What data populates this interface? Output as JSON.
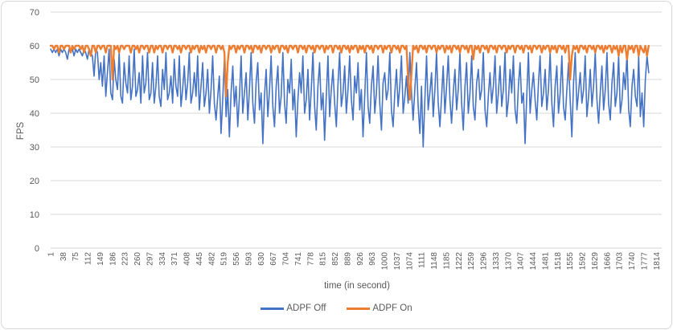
{
  "chart": {
    "background": "#ffffff",
    "border_color": "#D7D7D7",
    "gridline_color": "#D9D9D9",
    "axis_line_color": "#D0D0D0",
    "tick_label_color": "#595959"
  },
  "chart_data": {
    "type": "line",
    "title": "",
    "xlabel": "time (in second)",
    "ylabel": "FPS",
    "ylim": [
      0,
      70
    ],
    "yticks": [
      0,
      10,
      20,
      30,
      40,
      50,
      60,
      70
    ],
    "xticks": [
      1,
      38,
      75,
      112,
      149,
      186,
      223,
      260,
      297,
      334,
      371,
      408,
      445,
      482,
      519,
      556,
      593,
      630,
      667,
      704,
      741,
      778,
      815,
      852,
      889,
      926,
      963,
      1000,
      1037,
      1074,
      1111,
      1148,
      1185,
      1222,
      1259,
      1296,
      1333,
      1370,
      1407,
      1444,
      1481,
      1518,
      1555,
      1592,
      1629,
      1666,
      1703,
      1740,
      1777,
      1814
    ],
    "x_axis": {
      "min": 1,
      "max": 1830
    },
    "grid": true,
    "legend_position": "bottom",
    "x_rule": {
      "start": 1,
      "step": 5,
      "count": 359
    },
    "series": [
      {
        "name": "ADPF Off",
        "color": "#4472C4",
        "stroke_width": 1.6,
        "values": [
          59,
          58,
          59,
          58,
          59,
          57,
          59,
          58,
          59,
          58,
          56,
          59,
          58,
          59,
          57,
          59,
          58,
          59,
          58,
          57,
          59,
          58,
          56,
          59,
          58,
          57,
          51,
          59,
          58,
          50,
          55,
          48,
          57,
          45,
          52,
          59,
          46,
          44,
          56,
          50,
          47,
          58,
          45,
          43,
          55,
          49,
          46,
          57,
          44,
          48,
          59,
          45,
          47,
          52,
          43,
          57,
          46,
          49,
          58,
          44,
          46,
          55,
          43,
          48,
          57,
          45,
          42,
          53,
          47,
          58,
          44,
          46,
          51,
          43,
          56,
          48,
          45,
          57,
          42,
          47,
          54,
          44,
          49,
          58,
          43,
          46,
          52,
          45,
          57,
          41,
          48,
          55,
          42,
          46,
          53,
          40,
          47,
          57,
          43,
          38,
          45,
          51,
          34,
          44,
          56,
          39,
          47,
          33,
          46,
          54,
          42,
          48,
          36,
          45,
          57,
          40,
          46,
          52,
          38,
          47,
          58,
          43,
          37,
          49,
          55,
          41,
          46,
          31,
          45,
          53,
          39,
          47,
          57,
          42,
          36,
          48,
          54,
          40,
          45,
          58,
          43,
          37,
          50,
          46,
          56,
          41,
          47,
          33,
          44,
          52,
          46,
          57,
          40,
          44,
          53,
          38,
          47,
          58,
          42,
          35,
          48,
          55,
          41,
          46,
          32,
          45,
          57,
          39,
          47,
          53,
          43,
          36,
          49,
          58,
          42,
          46,
          54,
          40,
          47,
          57,
          44,
          38,
          51,
          46,
          55,
          41,
          47,
          33,
          45,
          58,
          42,
          37,
          48,
          54,
          40,
          46,
          57,
          43,
          35,
          49,
          52,
          44,
          47,
          58,
          41,
          36,
          46,
          53,
          42,
          48,
          57,
          40,
          45,
          51,
          43,
          58,
          46,
          38,
          47,
          55,
          42,
          34,
          48,
          30,
          44,
          57,
          41,
          46,
          52,
          39,
          47,
          58,
          43,
          36,
          45,
          54,
          40,
          48,
          57,
          44,
          37,
          46,
          53,
          41,
          47,
          58,
          43,
          35,
          48,
          55,
          40,
          46,
          57,
          42,
          38,
          49,
          53,
          44,
          47,
          58,
          41,
          36,
          45,
          52,
          43,
          48,
          57,
          40,
          46,
          54,
          42,
          47,
          58,
          39,
          44,
          53,
          46,
          57,
          41,
          37,
          48,
          55,
          43,
          46,
          31,
          45,
          58,
          40,
          47,
          52,
          44,
          38,
          49,
          57,
          42,
          46,
          53,
          41,
          47,
          58,
          43,
          36,
          48,
          54,
          40,
          46,
          57,
          42,
          38,
          47,
          55,
          44,
          33,
          49,
          58,
          41,
          46,
          52,
          43,
          47,
          57,
          39,
          45,
          53,
          42,
          48,
          58,
          44,
          37,
          46,
          54,
          41,
          47,
          58,
          43,
          38,
          49,
          55,
          42,
          46,
          57,
          40,
          44,
          52,
          47,
          58,
          41,
          36,
          48,
          53,
          45,
          42,
          57,
          39,
          46,
          36,
          50,
          57,
          52
        ]
      },
      {
        "name": "ADPF On",
        "color": "#ED7D31",
        "stroke_width": 2.4,
        "values": [
          60,
          60,
          59,
          60,
          60,
          58,
          60,
          60,
          59,
          60,
          60,
          60,
          58,
          60,
          59,
          60,
          60,
          60,
          59,
          60,
          58,
          60,
          60,
          59,
          57,
          60,
          60,
          58,
          60,
          60,
          59,
          60,
          60,
          58,
          60,
          60,
          60,
          50,
          60,
          59,
          60,
          58,
          60,
          60,
          59,
          60,
          60,
          60,
          58,
          60,
          60,
          59,
          60,
          58,
          60,
          60,
          59,
          60,
          60,
          58,
          60,
          60,
          58,
          60,
          59,
          60,
          60,
          58,
          60,
          60,
          59,
          60,
          60,
          58,
          60,
          60,
          59,
          60,
          58,
          60,
          60,
          59,
          60,
          60,
          58,
          60,
          59,
          60,
          60,
          58,
          60,
          59,
          60,
          58,
          60,
          60,
          59,
          60,
          60,
          58,
          60,
          60,
          59,
          60,
          58,
          45,
          55,
          60,
          59,
          60,
          60,
          58,
          60,
          59,
          60,
          60,
          58,
          60,
          60,
          59,
          60,
          58,
          60,
          60,
          59,
          60,
          58,
          60,
          60,
          59,
          60,
          60,
          58,
          60,
          59,
          60,
          60,
          58,
          60,
          60,
          59,
          60,
          58,
          60,
          60,
          59,
          60,
          60,
          58,
          60,
          60,
          59,
          60,
          58,
          60,
          60,
          59,
          60,
          58,
          60,
          60,
          59,
          60,
          60,
          58,
          60,
          59,
          60,
          60,
          58,
          60,
          60,
          59,
          60,
          58,
          60,
          60,
          59,
          60,
          58,
          60,
          59,
          60,
          60,
          58,
          60,
          59,
          60,
          58,
          60,
          60,
          59,
          60,
          58,
          60,
          60,
          59,
          60,
          60,
          58,
          60,
          59,
          60,
          60,
          58,
          60,
          60,
          59,
          60,
          58,
          60,
          60,
          59,
          60,
          50,
          44,
          52,
          60,
          59,
          60,
          58,
          60,
          60,
          59,
          60,
          58,
          60,
          60,
          59,
          60,
          60,
          58,
          60,
          59,
          60,
          60,
          58,
          60,
          59,
          60,
          58,
          60,
          60,
          59,
          60,
          58,
          60,
          60,
          59,
          60,
          58,
          60,
          60,
          56,
          60,
          59,
          60,
          58,
          60,
          60,
          59,
          60,
          58,
          60,
          60,
          59,
          60,
          58,
          60,
          60,
          59,
          60,
          60,
          58,
          60,
          59,
          60,
          60,
          58,
          60,
          60,
          59,
          60,
          58,
          60,
          60,
          59,
          60,
          58,
          60,
          60,
          59,
          60,
          60,
          58,
          60,
          59,
          60,
          60,
          58,
          60,
          59,
          60,
          58,
          60,
          60,
          59,
          60,
          58,
          60,
          60,
          50,
          57,
          60,
          59,
          60,
          58,
          60,
          60,
          59,
          60,
          58,
          60,
          60,
          59,
          60,
          58,
          60,
          60,
          59,
          60,
          58,
          60,
          59,
          60,
          60,
          58,
          60,
          59,
          60,
          57,
          60,
          58,
          60,
          60,
          56,
          60,
          59,
          60,
          58,
          60,
          60,
          57,
          60,
          59,
          58,
          60,
          57,
          60
        ]
      }
    ]
  }
}
